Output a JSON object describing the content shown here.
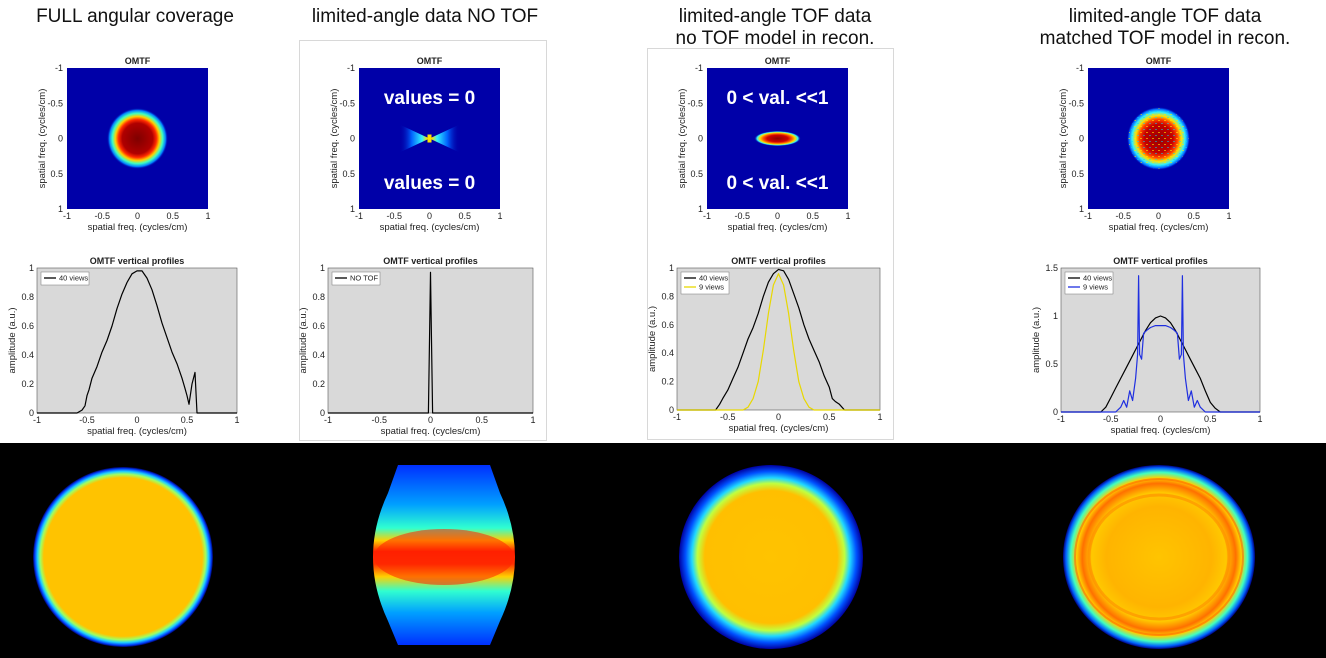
{
  "columns": [
    {
      "title_lines": [
        "FULL angular coverage"
      ]
    },
    {
      "title_lines": [
        "limited-angle data NO TOF"
      ]
    },
    {
      "title_lines": [
        "limited-angle TOF data",
        "no TOF model in recon."
      ]
    },
    {
      "title_lines": [
        "limited-angle TOF data",
        "matched TOF model in recon."
      ]
    }
  ],
  "chart_data": [
    {
      "type": "heatmap",
      "title": "OMTF",
      "xlabel": "spatial freq. (cycles/cm)",
      "ylabel": "spatial freq. (cycles/cm)",
      "xlim": [
        -1,
        1
      ],
      "ylim": [
        -1,
        1
      ],
      "x_ticks": [
        "-1",
        "-0.5",
        "0",
        "0.5",
        "1"
      ],
      "y_ticks": [
        "-1",
        "-0.5",
        "0",
        "0.5",
        "1"
      ],
      "y_reversed": true,
      "shape": "disk",
      "radius": 0.28,
      "annotations": []
    },
    {
      "type": "heatmap",
      "title": "OMTF",
      "xlabel": "spatial freq. (cycles/cm)",
      "ylabel": "spatial freq. (cycles/cm)",
      "xlim": [
        -1,
        1
      ],
      "ylim": [
        -1,
        1
      ],
      "x_ticks": [
        "-1",
        "-0.5",
        "0",
        "0.5",
        "1"
      ],
      "y_ticks": [
        "-1",
        "-0.5",
        "0",
        "0.5",
        "1"
      ],
      "y_reversed": true,
      "shape": "bowtie",
      "annotations": [
        "values = 0",
        "values = 0"
      ]
    },
    {
      "type": "heatmap",
      "title": "OMTF",
      "xlabel": "spatial freq. (cycles/cm)",
      "ylabel": "spatial freq. (cycles/cm)",
      "xlim": [
        -1,
        1
      ],
      "ylim": [
        -1,
        1
      ],
      "x_ticks": [
        "-1",
        "-0.5",
        "0",
        "0.5",
        "1"
      ],
      "y_ticks": [
        "-1",
        "-0.5",
        "0",
        "0.5",
        "1"
      ],
      "y_reversed": true,
      "shape": "ellipse",
      "radius_x": 0.22,
      "radius_y": 0.06,
      "annotations": [
        "0 < val. <<1",
        "0 < val. <<1"
      ]
    },
    {
      "type": "heatmap",
      "title": "OMTF",
      "xlabel": "spatial freq. (cycles/cm)",
      "ylabel": "spatial freq. (cycles/cm)",
      "xlim": [
        -1,
        1
      ],
      "ylim": [
        -1,
        1
      ],
      "x_ticks": [
        "-1",
        "-0.5",
        "0",
        "0.5",
        "1"
      ],
      "y_ticks": [
        "-1",
        "-0.5",
        "0",
        "0.5",
        "1"
      ],
      "y_reversed": true,
      "shape": "noisy-disk",
      "radius": 0.28,
      "annotations": []
    },
    {
      "type": "line",
      "title": "OMTF vertical profiles",
      "xlabel": "spatial freq. (cycles/cm)",
      "ylabel": "amplitude (a.u.)",
      "xlim": [
        -1,
        1
      ],
      "ylim": [
        0,
        1
      ],
      "x_ticks": [
        "-1",
        "-0.5",
        "0",
        "0.5",
        "1"
      ],
      "y_ticks": [
        "0",
        "0.2",
        "0.4",
        "0.6",
        "0.8",
        "1"
      ],
      "legend_position": "top-left",
      "series": [
        {
          "name": "40 views",
          "color": "#000000",
          "x": [
            -1,
            -0.6,
            -0.55,
            -0.52,
            -0.5,
            -0.48,
            -0.45,
            -0.4,
            -0.35,
            -0.3,
            -0.25,
            -0.2,
            -0.15,
            -0.1,
            -0.05,
            0,
            0.05,
            0.1,
            0.15,
            0.2,
            0.25,
            0.3,
            0.35,
            0.4,
            0.45,
            0.48,
            0.5,
            0.52,
            0.55,
            0.58,
            0.6,
            1
          ],
          "y": [
            0,
            0,
            0.02,
            0.05,
            0.12,
            0.16,
            0.24,
            0.32,
            0.42,
            0.5,
            0.6,
            0.72,
            0.82,
            0.9,
            0.96,
            0.98,
            0.98,
            0.93,
            0.85,
            0.74,
            0.62,
            0.52,
            0.42,
            0.34,
            0.24,
            0.17,
            0.12,
            0.06,
            0.2,
            0.28,
            0,
            0
          ]
        }
      ]
    },
    {
      "type": "line",
      "title": "OMTF vertical profiles",
      "xlabel": "spatial freq. (cycles/cm)",
      "ylabel": "amplitude (a.u.)",
      "xlim": [
        -1,
        1
      ],
      "ylim": [
        0,
        1
      ],
      "x_ticks": [
        "-1",
        "-0.5",
        "0",
        "0.5",
        "1"
      ],
      "y_ticks": [
        "0",
        "0.2",
        "0.4",
        "0.6",
        "0.8",
        "1"
      ],
      "legend_position": "top-left",
      "series": [
        {
          "name": "NO TOF",
          "color": "#000000",
          "x": [
            -1,
            -0.02,
            -0.01,
            0,
            0.01,
            0.02,
            1
          ],
          "y": [
            0,
            0,
            0.5,
            0.97,
            0.5,
            0,
            0
          ]
        }
      ]
    },
    {
      "type": "line",
      "title": "OMTF vertical profiles",
      "xlabel": "spatial freq. (cycles/cm)",
      "ylabel": "amplitude (a.u.)",
      "xlim": [
        -1,
        1
      ],
      "ylim": [
        0,
        1
      ],
      "x_ticks": [
        "-1",
        "-0.5",
        "0",
        "0.5",
        "1"
      ],
      "y_ticks": [
        "0",
        "0.2",
        "0.4",
        "0.6",
        "0.8",
        "1"
      ],
      "legend_position": "top-left",
      "series": [
        {
          "name": "40 views",
          "color": "#000000",
          "x": [
            -1,
            -0.62,
            -0.58,
            -0.55,
            -0.5,
            -0.45,
            -0.4,
            -0.35,
            -0.3,
            -0.25,
            -0.2,
            -0.15,
            -0.1,
            -0.05,
            0,
            0.05,
            0.1,
            0.15,
            0.2,
            0.25,
            0.3,
            0.35,
            0.4,
            0.45,
            0.5,
            0.53,
            0.56,
            0.6,
            0.65,
            1
          ],
          "y": [
            0,
            0,
            0.04,
            0.08,
            0.14,
            0.22,
            0.3,
            0.4,
            0.5,
            0.58,
            0.68,
            0.8,
            0.9,
            0.96,
            0.99,
            0.98,
            0.92,
            0.82,
            0.72,
            0.6,
            0.5,
            0.42,
            0.34,
            0.24,
            0.16,
            0.08,
            0.06,
            0.04,
            0,
            0
          ]
        },
        {
          "name": "9 views",
          "color": "#e8d800",
          "x": [
            -1,
            -0.35,
            -0.3,
            -0.25,
            -0.2,
            -0.15,
            -0.1,
            -0.05,
            0,
            0.05,
            0.1,
            0.15,
            0.2,
            0.25,
            0.3,
            0.35,
            1
          ],
          "y": [
            0,
            0,
            0.02,
            0.08,
            0.2,
            0.42,
            0.68,
            0.88,
            0.96,
            0.88,
            0.68,
            0.42,
            0.2,
            0.08,
            0.02,
            0,
            0
          ]
        }
      ]
    },
    {
      "type": "line",
      "title": "OMTF vertical profiles",
      "xlabel": "spatial freq. (cycles/cm)",
      "ylabel": "amplitude (a.u.)",
      "xlim": [
        -1,
        1
      ],
      "ylim": [
        0,
        1.5
      ],
      "x_ticks": [
        "-1",
        "-0.5",
        "0",
        "0.5",
        "1"
      ],
      "y_ticks": [
        "0",
        "0.5",
        "1",
        "1.5"
      ],
      "legend_position": "top-left",
      "series": [
        {
          "name": "40 views",
          "color": "#000000",
          "x": [
            -1,
            -0.6,
            -0.55,
            -0.5,
            -0.45,
            -0.4,
            -0.35,
            -0.3,
            -0.25,
            -0.2,
            -0.15,
            -0.1,
            -0.05,
            0,
            0.05,
            0.1,
            0.15,
            0.2,
            0.25,
            0.3,
            0.35,
            0.4,
            0.45,
            0.5,
            0.55,
            0.6,
            1
          ],
          "y": [
            0,
            0,
            0.05,
            0.15,
            0.25,
            0.35,
            0.45,
            0.55,
            0.65,
            0.75,
            0.85,
            0.93,
            0.98,
            1.0,
            0.98,
            0.93,
            0.85,
            0.75,
            0.65,
            0.55,
            0.45,
            0.35,
            0.22,
            0.1,
            0.04,
            0,
            0
          ]
        },
        {
          "name": "9 views",
          "color": "#1f2fe0",
          "x": [
            -1,
            -0.45,
            -0.4,
            -0.37,
            -0.34,
            -0.31,
            -0.28,
            -0.25,
            -0.23,
            -0.22,
            -0.21,
            -0.19,
            -0.17,
            -0.14,
            -0.1,
            -0.05,
            0,
            0.05,
            0.1,
            0.14,
            0.17,
            0.19,
            0.21,
            0.22,
            0.23,
            0.25,
            0.28,
            0.31,
            0.34,
            0.37,
            0.4,
            0.45,
            1
          ],
          "y": [
            0,
            0,
            0.05,
            0.12,
            0.05,
            0.22,
            0.12,
            0.35,
            0.6,
            1.42,
            0.6,
            0.55,
            0.82,
            0.85,
            0.88,
            0.9,
            0.9,
            0.9,
            0.88,
            0.85,
            0.82,
            0.55,
            0.6,
            1.42,
            0.6,
            0.35,
            0.12,
            0.22,
            0.05,
            0.12,
            0.05,
            0,
            0
          ]
        }
      ]
    }
  ]
}
